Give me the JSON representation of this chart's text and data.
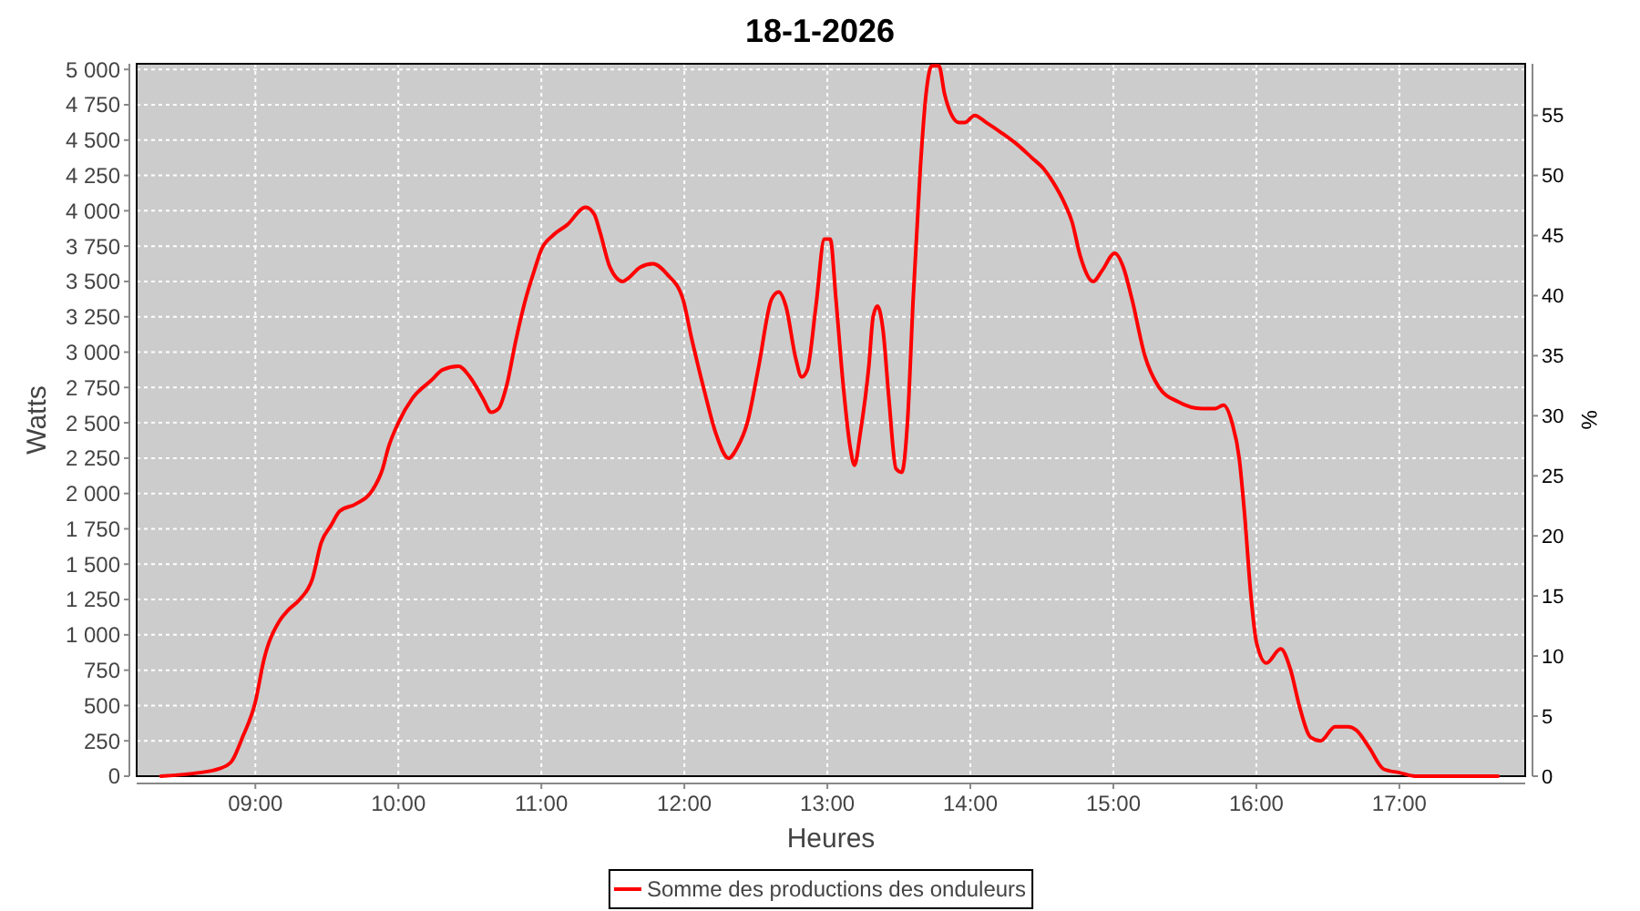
{
  "chart_data": {
    "type": "line",
    "title": "18-1-2026",
    "xlabel": "Heures",
    "ylabel": "Watts",
    "y2label": "%",
    "x": [
      8.34,
      8.61,
      8.74,
      8.83,
      8.91,
      9.0,
      9.06,
      9.17,
      9.23,
      9.31,
      9.4,
      9.46,
      9.53,
      9.59,
      9.7,
      9.82,
      9.89,
      9.93,
      10.0,
      10.1,
      10.23,
      10.31,
      10.42,
      10.5,
      10.59,
      10.65,
      10.7,
      10.76,
      10.82,
      10.89,
      10.95,
      11.0,
      11.08,
      11.18,
      11.31,
      11.37,
      11.41,
      11.48,
      11.57,
      11.61,
      11.69,
      11.78,
      11.88,
      11.99,
      12.05,
      12.14,
      12.22,
      12.31,
      12.37,
      12.44,
      12.52,
      12.61,
      12.66,
      12.71,
      12.78,
      12.82,
      12.86,
      12.92,
      12.98,
      13.02,
      13.06,
      13.11,
      13.16,
      13.19,
      13.23,
      13.29,
      13.32,
      13.35,
      13.39,
      13.43,
      13.48,
      13.52,
      13.56,
      13.6,
      13.65,
      13.69,
      13.73,
      13.78,
      13.82,
      13.87,
      13.92,
      13.96,
      14.03,
      14.11,
      14.22,
      14.32,
      14.43,
      14.51,
      14.58,
      14.66,
      14.71,
      14.77,
      14.86,
      14.92,
      15.01,
      15.07,
      15.13,
      15.22,
      15.32,
      15.45,
      15.62,
      15.71,
      15.77,
      15.83,
      15.88,
      15.92,
      15.96,
      16.0,
      16.07,
      16.17,
      16.24,
      16.3,
      16.38,
      16.45,
      16.55,
      16.64,
      16.7,
      16.79,
      16.89,
      17.0,
      17.11,
      17.69
    ],
    "series": [
      {
        "name": "Somme des productions des onduleurs",
        "color": "#ff0000",
        "values": [
          0,
          25,
          50,
          100,
          275,
          525,
          825,
          1100,
          1175,
          1250,
          1400,
          1650,
          1775,
          1875,
          1925,
          2025,
          2175,
          2325,
          2500,
          2675,
          2800,
          2875,
          2900,
          2825,
          2675,
          2575,
          2600,
          2775,
          3075,
          3375,
          3575,
          3725,
          3825,
          3900,
          4025,
          3975,
          3850,
          3600,
          3500,
          3525,
          3600,
          3625,
          3550,
          3375,
          3100,
          2725,
          2425,
          2250,
          2325,
          2500,
          2900,
          3375,
          3425,
          3325,
          2950,
          2825,
          2875,
          3325,
          3800,
          3800,
          3375,
          2775,
          2325,
          2200,
          2425,
          2900,
          3250,
          3325,
          3150,
          2675,
          2175,
          2150,
          2500,
          3375,
          4300,
          4825,
          5025,
          5025,
          4825,
          4675,
          4625,
          4625,
          4675,
          4625,
          4550,
          4475,
          4375,
          4300,
          4200,
          4050,
          3925,
          3675,
          3500,
          3575,
          3700,
          3600,
          3375,
          2975,
          2750,
          2650,
          2600,
          2600,
          2625,
          2500,
          2250,
          1825,
          1300,
          950,
          800,
          900,
          750,
          500,
          275,
          250,
          350,
          350,
          325,
          200,
          50,
          25,
          0,
          0
        ]
      }
    ],
    "xlim": [
      8.17,
      17.88
    ],
    "xticks": [
      {
        "value": 9,
        "label": "09:00"
      },
      {
        "value": 10,
        "label": "10:00"
      },
      {
        "value": 11,
        "label": "11:00"
      },
      {
        "value": 12,
        "label": "12:00"
      },
      {
        "value": 13,
        "label": "13:00"
      },
      {
        "value": 14,
        "label": "14:00"
      },
      {
        "value": 15,
        "label": "15:00"
      },
      {
        "value": 16,
        "label": "16:00"
      },
      {
        "value": 17,
        "label": "17:00"
      }
    ],
    "ylim": [
      0,
      5040
    ],
    "yticks": [
      0,
      250,
      500,
      750,
      {
        "value": 1000,
        "label": "1 000"
      },
      {
        "value": 1250,
        "label": "1 250"
      },
      {
        "value": 1500,
        "label": "1 500"
      },
      {
        "value": 1750,
        "label": "1 750"
      },
      {
        "value": 2000,
        "label": "2 000"
      },
      {
        "value": 2250,
        "label": "2 250"
      },
      {
        "value": 2500,
        "label": "2 500"
      },
      {
        "value": 2750,
        "label": "2 750"
      },
      {
        "value": 3000,
        "label": "3 000"
      },
      {
        "value": 3250,
        "label": "3 250"
      },
      {
        "value": 3500,
        "label": "3 500"
      },
      {
        "value": 3750,
        "label": "3 750"
      },
      {
        "value": 4000,
        "label": "4 000"
      },
      {
        "value": 4250,
        "label": "4 250"
      },
      {
        "value": 4500,
        "label": "4 500"
      },
      {
        "value": 4750,
        "label": "4 750"
      },
      {
        "value": 5000,
        "label": "5 000"
      }
    ],
    "y2lim": [
      0,
      59.3
    ],
    "y2ticks": [
      0,
      5,
      10,
      15,
      20,
      25,
      30,
      35,
      40,
      45,
      50,
      55
    ],
    "grid": true,
    "legend": "bottom"
  }
}
